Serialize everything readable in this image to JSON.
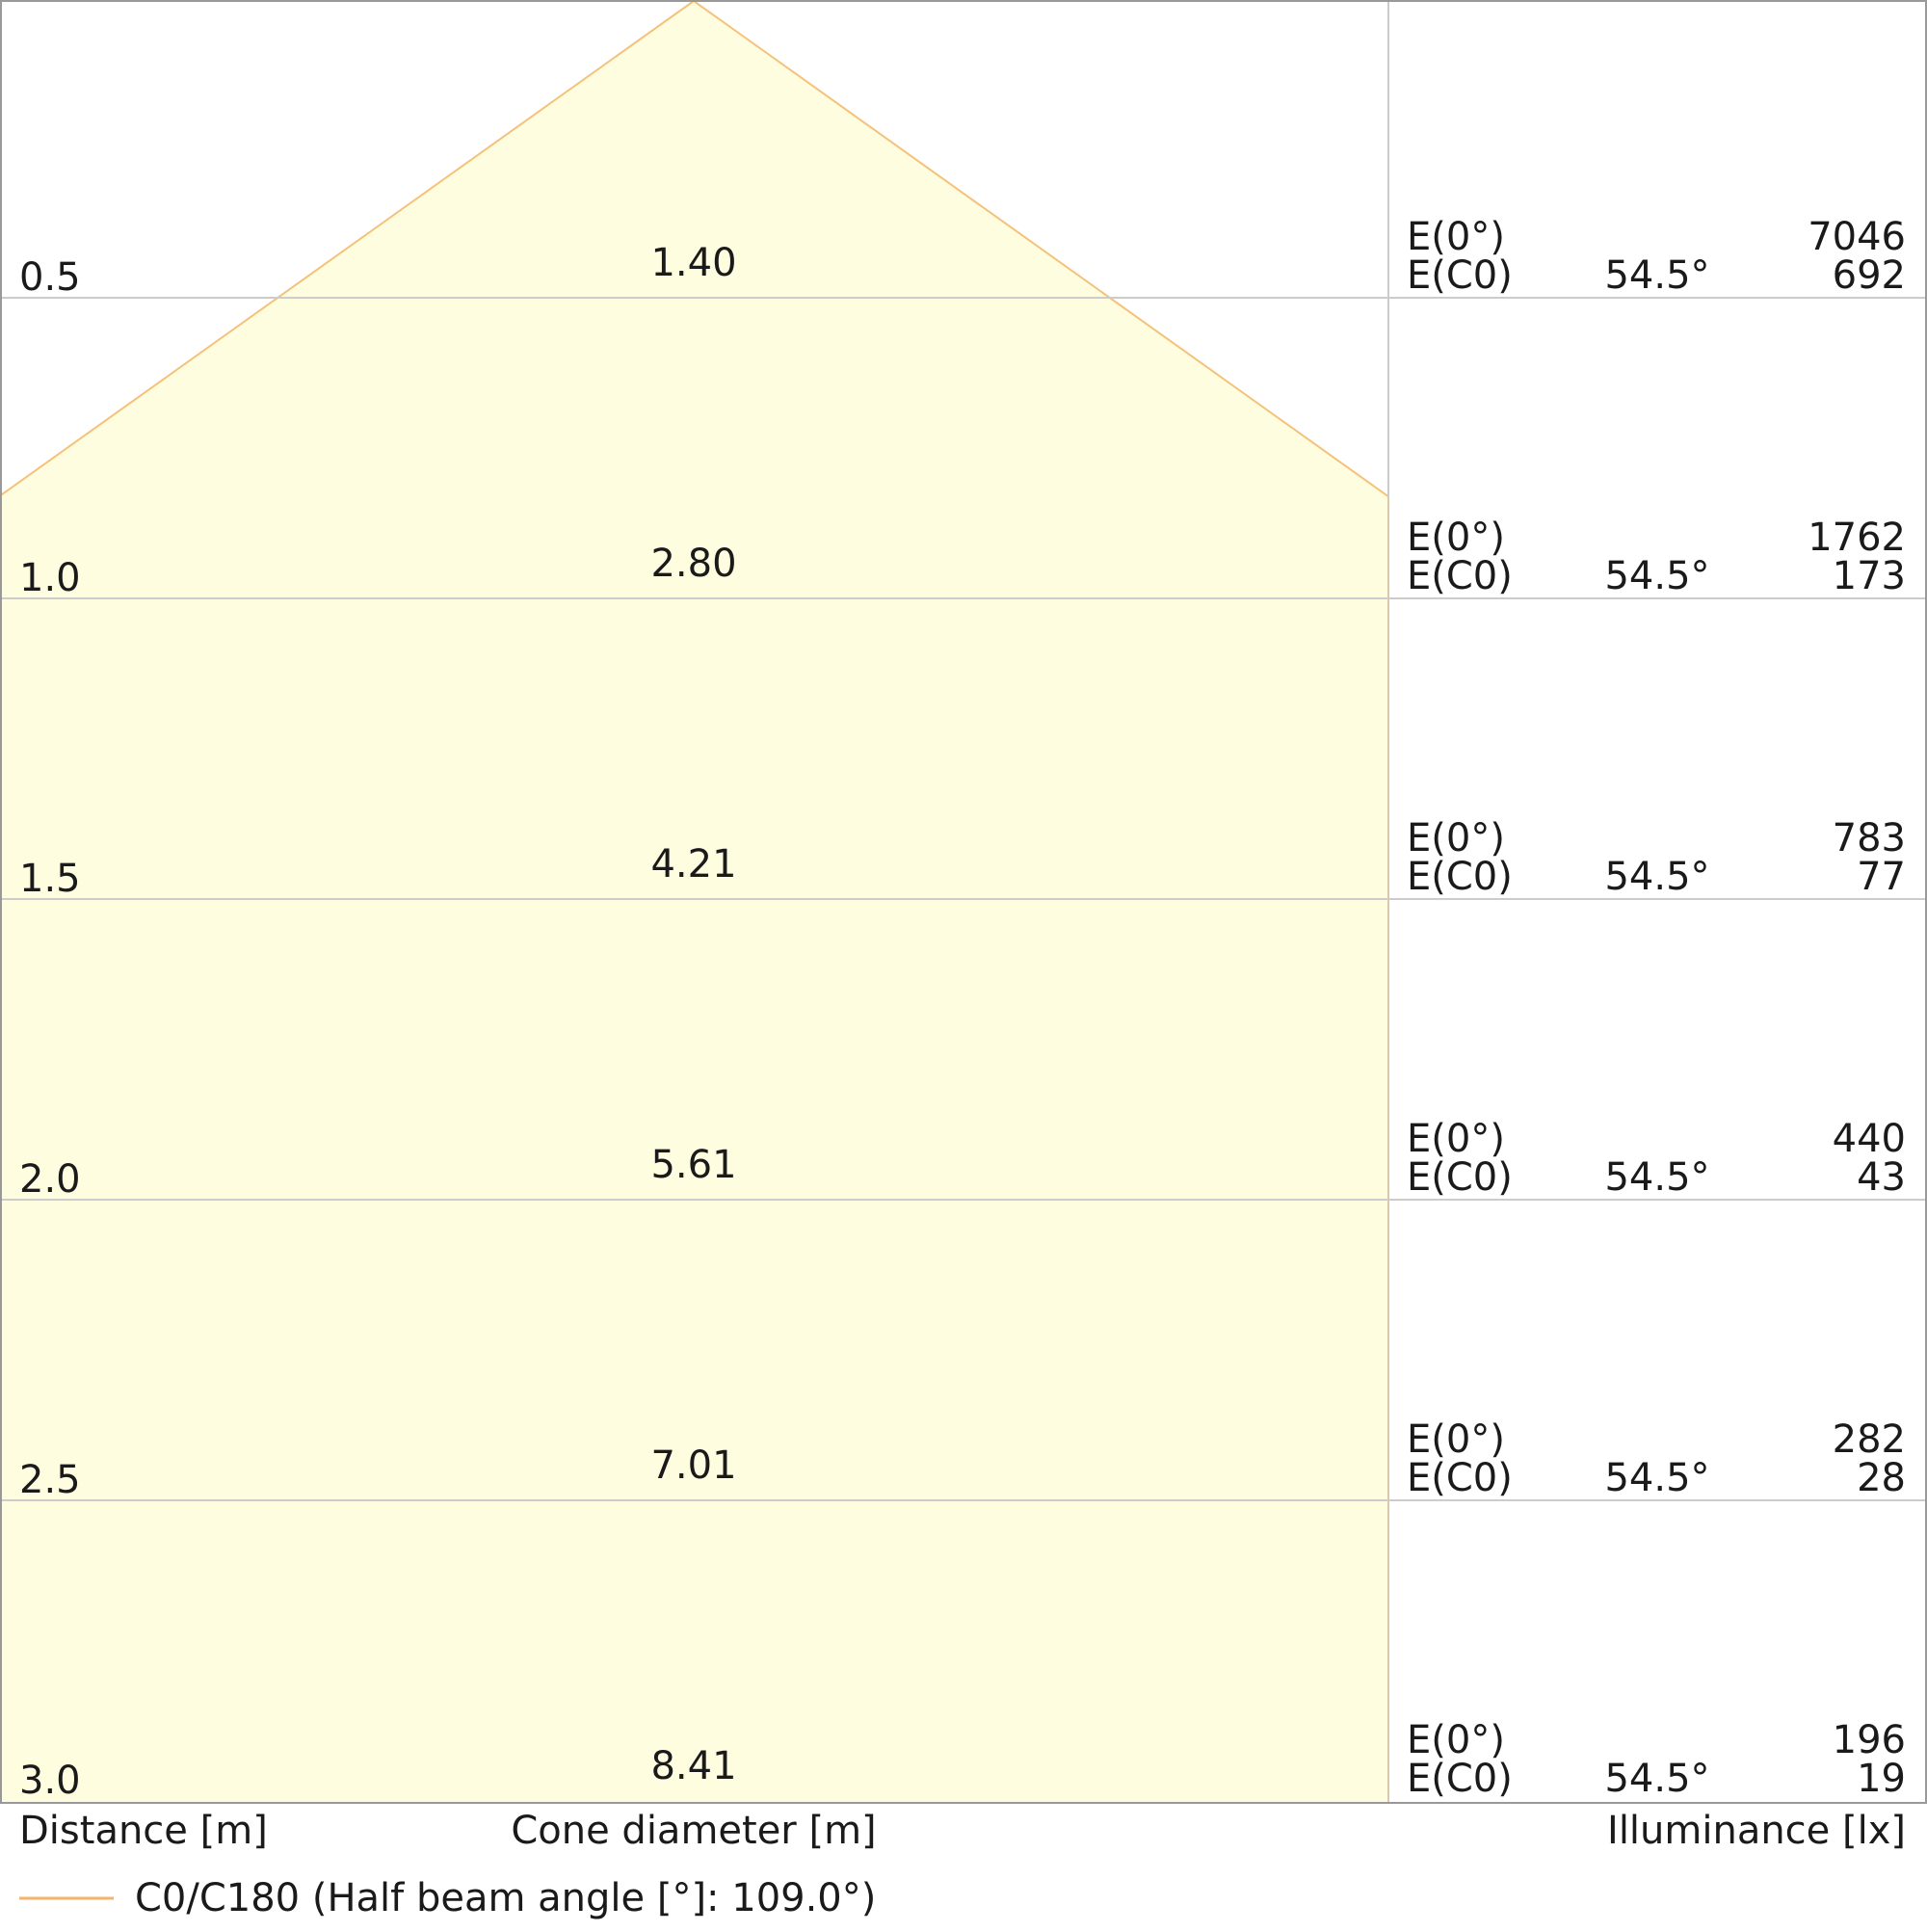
{
  "chart_data": {
    "type": "table",
    "distance_label": "Distance [m]",
    "cone_label": "Cone diameter [m]",
    "illuminance_label": "Illuminance [lx]",
    "legend_label": "C0/C180 (Half beam angle [°]: 109.0°)",
    "half_beam_angle": 109.0,
    "colors": {
      "cone_fill": "#fffde0",
      "cone_stroke": "#f5c27a",
      "grid": "#cccccc"
    },
    "rows": [
      {
        "distance": "0.5",
        "diameter": "1.40",
        "e0_label": "E(0°)",
        "e0_value": "7046",
        "ec0_label": "E(C0)",
        "angle": "54.5°",
        "ec0_value": "692"
      },
      {
        "distance": "1.0",
        "diameter": "2.80",
        "e0_label": "E(0°)",
        "e0_value": "1762",
        "ec0_label": "E(C0)",
        "angle": "54.5°",
        "ec0_value": "173"
      },
      {
        "distance": "1.5",
        "diameter": "4.21",
        "e0_label": "E(0°)",
        "e0_value": "783",
        "ec0_label": "E(C0)",
        "angle": "54.5°",
        "ec0_value": "77"
      },
      {
        "distance": "2.0",
        "diameter": "5.61",
        "e0_label": "E(0°)",
        "e0_value": "440",
        "ec0_label": "E(C0)",
        "angle": "54.5°",
        "ec0_value": "43"
      },
      {
        "distance": "2.5",
        "diameter": "7.01",
        "e0_label": "E(0°)",
        "e0_value": "282",
        "ec0_label": "E(C0)",
        "angle": "54.5°",
        "ec0_value": "28"
      },
      {
        "distance": "3.0",
        "diameter": "8.41",
        "e0_label": "E(0°)",
        "e0_value": "196",
        "ec0_label": "E(C0)",
        "angle": "54.5°",
        "ec0_value": "19"
      }
    ]
  }
}
